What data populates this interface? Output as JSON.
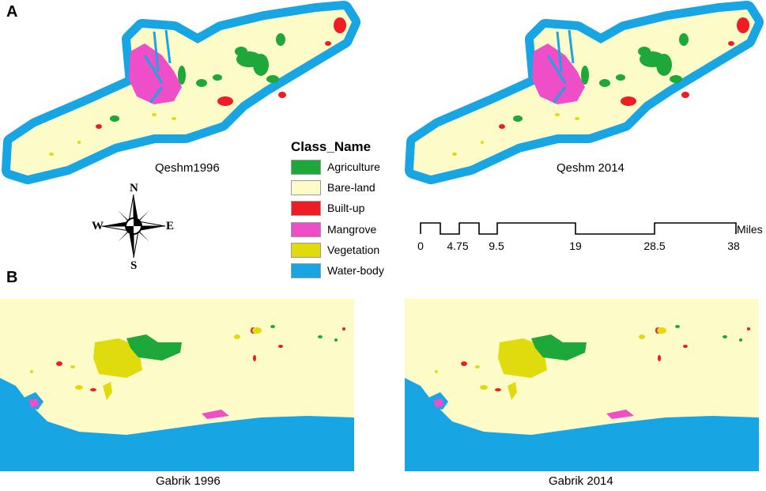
{
  "panels": {
    "a": "A",
    "b": "B"
  },
  "maps": {
    "qeshm_1996": "Qeshm1996",
    "qeshm_2014": "Qeshm 2014",
    "gabrik_1996": "Gabrik 1996",
    "gabrik_2014": "Gabrik 2014"
  },
  "legend": {
    "title": "Class_Name",
    "items": [
      {
        "label": "Agriculture",
        "color": "#1fa83a"
      },
      {
        "label": "Bare-land",
        "color": "#fdfbc8"
      },
      {
        "label": "Built-up",
        "color": "#ee1c24"
      },
      {
        "label": "Mangrove",
        "color": "#ee4fc9"
      },
      {
        "label": "Vegetation",
        "color": "#dfdb0c"
      },
      {
        "label": "Water-body",
        "color": "#17a5e3"
      }
    ]
  },
  "compass": {
    "n": "N",
    "s": "S",
    "e": "E",
    "w": "W"
  },
  "scale_bar": {
    "unit": "Miles",
    "ticks": [
      "0",
      "4.75",
      "9.5",
      "19",
      "28.5",
      "38"
    ]
  },
  "colors": {
    "water": "#17a5e3",
    "bare_land": "#fdfbc8",
    "agriculture": "#1fa83a",
    "built_up": "#ee1c24",
    "mangrove": "#ee4fc9",
    "vegetation": "#dfdb0c"
  }
}
